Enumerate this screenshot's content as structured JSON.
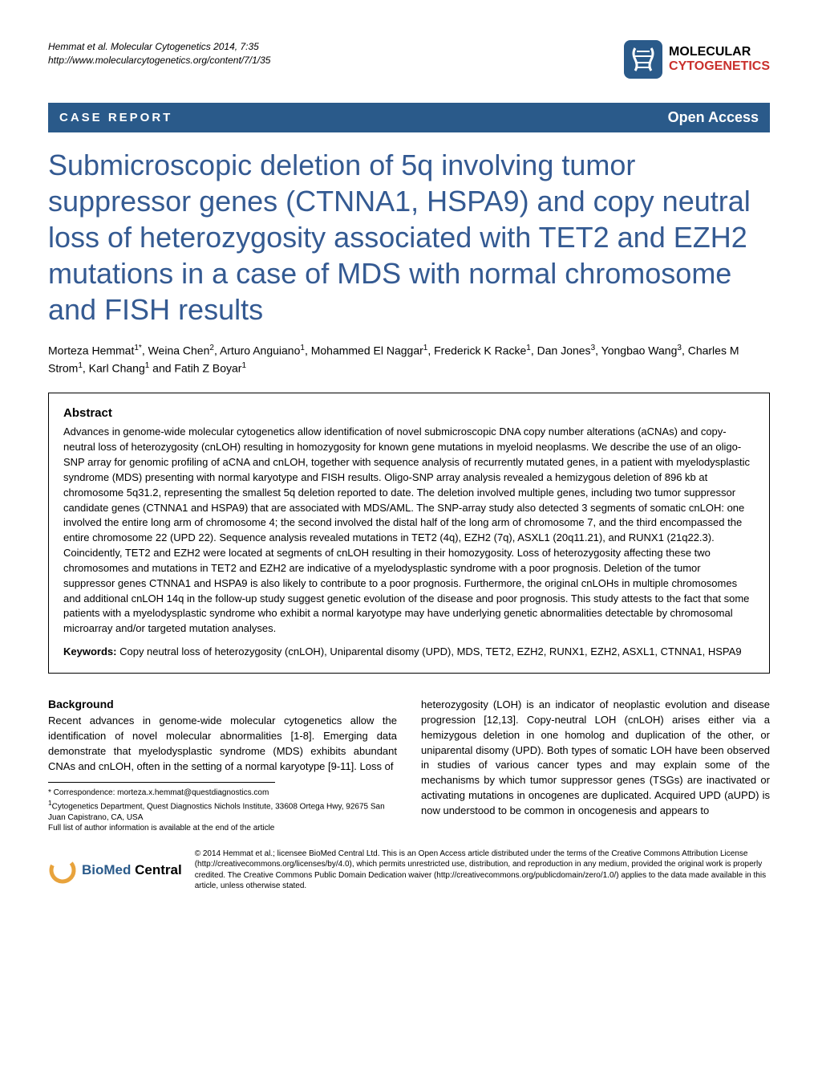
{
  "header": {
    "citation": "Hemmat et al. Molecular Cytogenetics 2014, 7:35",
    "url": "http://www.molecularcytogenetics.org/content/7/1/35",
    "logo_line1": "MOLECULAR",
    "logo_line2": "CYTOGENETICS"
  },
  "bar": {
    "left": "CASE REPORT",
    "right": "Open Access"
  },
  "title": "Submicroscopic deletion of 5q involving tumor suppressor genes (CTNNA1, HSPA9) and copy neutral loss of heterozygosity associated with TET2 and EZH2 mutations in a case of MDS with normal chromosome and FISH results",
  "authors_html": "Morteza Hemmat<sup>1*</sup>, Weina Chen<sup>2</sup>, Arturo Anguiano<sup>1</sup>, Mohammed El Naggar<sup>1</sup>, Frederick K Racke<sup>1</sup>, Dan Jones<sup>3</sup>, Yongbao Wang<sup>3</sup>, Charles M Strom<sup>1</sup>, Karl Chang<sup>1</sup> and Fatih Z Boyar<sup>1</sup>",
  "abstract": {
    "heading": "Abstract",
    "text": "Advances in genome-wide molecular cytogenetics allow identification of novel submicroscopic DNA copy number alterations (aCNAs) and copy-neutral loss of heterozygosity (cnLOH) resulting in homozygosity for known gene mutations in myeloid neoplasms. We describe the use of an oligo-SNP array for genomic profiling of aCNA and cnLOH, together with sequence analysis of recurrently mutated genes, in a patient with myelodysplastic syndrome (MDS) presenting with normal karyotype and FISH results. Oligo-SNP array analysis revealed a hemizygous deletion of 896 kb at chromosome 5q31.2, representing the smallest 5q deletion reported to date. The deletion involved multiple genes, including two tumor suppressor candidate genes (CTNNA1 and HSPA9) that are associated with MDS/AML. The SNP-array study also detected 3 segments of somatic cnLOH: one involved the entire long arm of chromosome 4; the second involved the distal half of the long arm of chromosome 7, and the third encompassed the entire chromosome 22 (UPD 22). Sequence analysis revealed mutations in TET2 (4q), EZH2 (7q), ASXL1 (20q11.21), and RUNX1 (21q22.3). Coincidently, TET2 and EZH2 were located at segments of cnLOH resulting in their homozygosity. Loss of heterozygosity affecting these two chromosomes and mutations in TET2 and EZH2 are indicative of a myelodysplastic syndrome with a poor prognosis. Deletion of the tumor suppressor genes CTNNA1 and HSPA9 is also likely to contribute to a poor prognosis. Furthermore, the original cnLOHs in multiple chromosomes and additional cnLOH 14q in the follow-up study suggest genetic evolution of the disease and poor prognosis. This study attests to the fact that some patients with a myelodysplastic syndrome who exhibit a normal karyotype may have underlying genetic abnormalities detectable by chromosomal microarray and/or targeted mutation analyses.",
    "keywords_label": "Keywords:",
    "keywords": "Copy neutral loss of heterozygosity (cnLOH), Uniparental disomy (UPD), MDS, TET2, EZH2, RUNX1, EZH2, ASXL1, CTNNA1, HSPA9"
  },
  "body": {
    "background_heading": "Background",
    "left_para": "Recent advances in genome-wide molecular cytogenetics allow the identification of novel molecular abnormalities [1-8]. Emerging data demonstrate that myelodysplastic syndrome (MDS) exhibits abundant CNAs and cnLOH, often in the setting of a normal karyotype [9-11]. Loss of",
    "right_para": "heterozygosity (LOH) is an indicator of neoplastic evolution and disease progression [12,13]. Copy-neutral LOH (cnLOH) arises either via a hemizygous deletion in one homolog and duplication of the other, or uniparental disomy (UPD). Both types of somatic LOH have been observed in studies of various cancer types and may explain some of the mechanisms by which tumor suppressor genes (TSGs) are inactivated or activating mutations in oncogenes are duplicated. Acquired UPD (aUPD) is now understood to be common in oncogenesis and appears to"
  },
  "footnotes": {
    "correspondence": "* Correspondence: morteza.x.hemmat@questdiagnostics.com",
    "affil1": "1Cytogenetics Department, Quest Diagnostics Nichols Institute, 33608 Ortega Hwy, 92675 San Juan Capistrano, CA, USA",
    "full_list": "Full list of author information is available at the end of the article"
  },
  "license": {
    "bmc_bio": "BioMed",
    "bmc_central": " Central",
    "text": "© 2014 Hemmat et al.; licensee BioMed Central Ltd. This is an Open Access article distributed under the terms of the Creative Commons Attribution License (http://creativecommons.org/licenses/by/4.0), which permits unrestricted use, distribution, and reproduction in any medium, provided the original work is properly credited. The Creative Commons Public Domain Dedication waiver (http://creativecommons.org/publicdomain/zero/1.0/) applies to the data made available in this article, unless otherwise stated."
  }
}
